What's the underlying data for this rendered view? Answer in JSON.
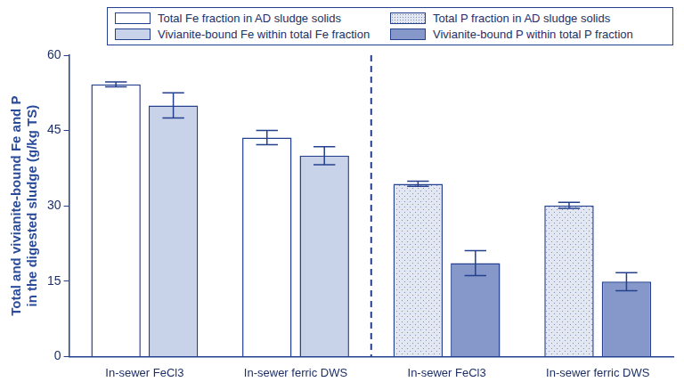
{
  "chart_data": {
    "type": "bar",
    "categories": [
      "In-sewer FeCl3",
      "In-sewer ferric DWS",
      "In-sewer FeCl3",
      "In-sewer ferric DWS"
    ],
    "y_label": [
      "Total and vivianite-bound Fe and P",
      "in the digested sludge (g/kg TS)"
    ],
    "series": [
      {
        "name": "Total Fe fraction in AD sludge solids",
        "color": "#ffffff",
        "values": [
          54.2,
          43.6,
          null,
          null
        ],
        "errors": [
          0.5,
          1.4,
          null,
          null
        ]
      },
      {
        "name": "Vivianite-bound Fe within total Fe fraction",
        "color": "#c8d2e8",
        "values": [
          50.0,
          40.0,
          null,
          null
        ],
        "errors": [
          2.5,
          1.8,
          null,
          null
        ]
      },
      {
        "name": "Total P fraction in AD sludge solids",
        "color": "#e2e7f1",
        "values": [
          null,
          null,
          34.4,
          30.1
        ],
        "errors": [
          null,
          null,
          0.5,
          0.6
        ]
      },
      {
        "name": "Vivianite-bound P within total P fraction",
        "color": "#8598c9",
        "values": [
          null,
          null,
          18.6,
          14.9
        ],
        "errors": [
          null,
          null,
          2.5,
          1.8
        ]
      }
    ],
    "ylim": [
      0,
      60
    ],
    "yticks": [
      0,
      15,
      30,
      45,
      60
    ],
    "grid": false,
    "legend": "top"
  }
}
